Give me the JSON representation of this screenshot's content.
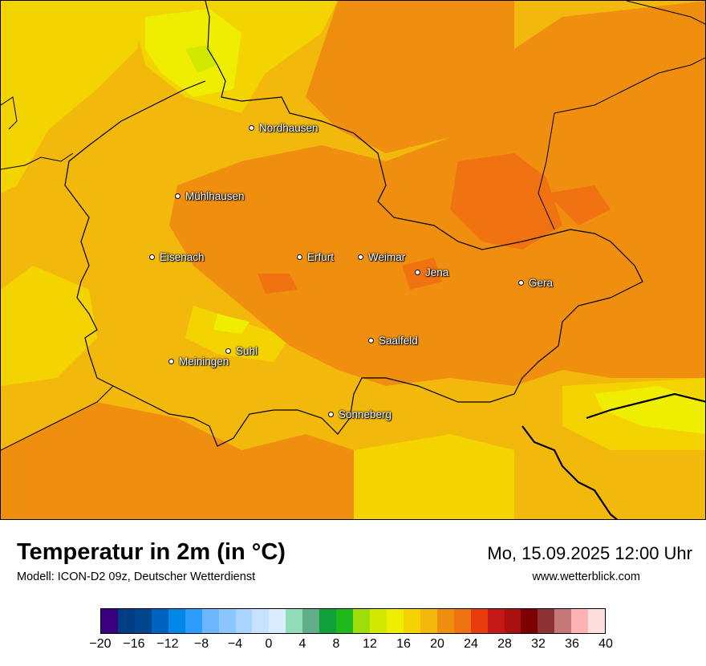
{
  "map": {
    "cities": [
      {
        "name": "Nordhausen"
      },
      {
        "name": "Mühlhausen"
      },
      {
        "name": "Eisenach"
      },
      {
        "name": "Erfurt"
      },
      {
        "name": "Weimar"
      },
      {
        "name": "Jena"
      },
      {
        "name": "Gera"
      },
      {
        "name": "Suhl"
      },
      {
        "name": "Meiningen"
      },
      {
        "name": "Saalfeld"
      },
      {
        "name": "Sonneberg"
      }
    ]
  },
  "footer": {
    "title": "Temperatur in 2m (in °C)",
    "model": "Modell: ICON-D2 09z, Deutscher Wetterdienst",
    "datetime": "Mo, 15.09.2025 12:00 Uhr",
    "website": "www.wetterblick.com"
  },
  "legend": {
    "tick_labels": [
      "−20",
      "−16",
      "−12",
      "−8",
      "−4",
      "0",
      "4",
      "8",
      "12",
      "16",
      "20",
      "24",
      "28",
      "32",
      "36",
      "40"
    ],
    "colors": [
      "#3b0080",
      "#003d84",
      "#00468f",
      "#0062c0",
      "#0086e6",
      "#2b9cfa",
      "#6bb6ff",
      "#8cc6ff",
      "#a9d4ff",
      "#c6e2ff",
      "#dcecff",
      "#92dcb8",
      "#61ad8a",
      "#0fa03a",
      "#1eb81a",
      "#9edc0c",
      "#d2e800",
      "#f0ee00",
      "#f4d400",
      "#f2b90c",
      "#f08e10",
      "#f07210",
      "#e83c0c",
      "#c41818",
      "#aa1010",
      "#7c0000",
      "#8c3232",
      "#c47878",
      "#ffb4b4",
      "#ffdede"
    ]
  }
}
